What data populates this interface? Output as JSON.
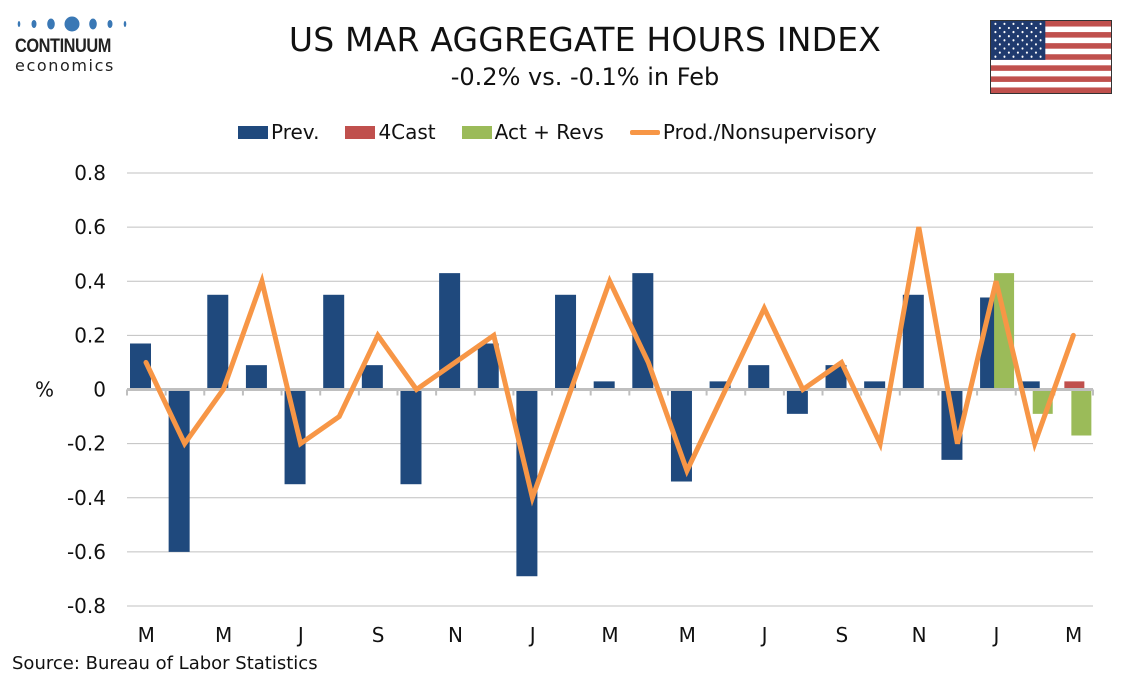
{
  "logo": {
    "name": "CONTINUUM",
    "sub": "economics",
    "dot_color": "#3a78b5"
  },
  "header": {
    "title": "US MAR AGGREGATE HOURS INDEX",
    "subtitle": "-0.2% vs. -0.1% in Feb",
    "flag": "us-flag"
  },
  "colors": {
    "prev": "#1f497d",
    "forecast": "#c0504d",
    "actual": "#9bbb59",
    "line": "#f79646",
    "grid": "#c0c0c0",
    "axis": "#bfbfbf"
  },
  "source": "Source: Bureau of Labor Statistics",
  "chart_data": {
    "type": "bar",
    "title": "US MAR AGGREGATE HOURS INDEX",
    "subtitle": "-0.2% vs. -0.1% in Feb",
    "xlabel": "",
    "ylabel": "%",
    "ylim": [
      -0.8,
      0.8
    ],
    "yticks": [
      0.8,
      0.6,
      0.4,
      0.2,
      0,
      -0.2,
      -0.4,
      -0.6,
      -0.8
    ],
    "ytick_labels": [
      "0.8",
      "0.6",
      "0.4",
      "0.2",
      "0",
      "-0.2",
      "-0.4",
      "-0.6",
      "-0.8"
    ],
    "grid": true,
    "legend_position": "top",
    "categories": [
      "Mar",
      "Apr",
      "May",
      "Jun",
      "Jul",
      "Aug",
      "Sep",
      "Oct",
      "Nov",
      "Dec",
      "Jan",
      "Feb",
      "Mar",
      "Apr",
      "May",
      "Jun",
      "Jul",
      "Aug",
      "Sep",
      "Oct",
      "Nov",
      "Dec",
      "Jan",
      "Feb",
      "Mar"
    ],
    "xtick_labels": [
      "M",
      "M",
      "J",
      "S",
      "N",
      "J",
      "M",
      "M",
      "J",
      "S",
      "N",
      "J",
      "M"
    ],
    "xtick_every": 2,
    "series": [
      {
        "name": "Prev.",
        "type": "bar",
        "color_key": "prev",
        "values": [
          0.17,
          -0.6,
          0.35,
          0.09,
          -0.35,
          0.35,
          0.09,
          -0.35,
          0.43,
          0.17,
          -0.69,
          0.35,
          0.03,
          0.43,
          -0.34,
          0.03,
          0.09,
          -0.09,
          0.09,
          0.03,
          0.35,
          -0.26,
          0.34,
          0.03,
          null
        ]
      },
      {
        "name": "4Cast",
        "type": "bar",
        "color_key": "forecast",
        "values": [
          null,
          null,
          null,
          null,
          null,
          null,
          null,
          null,
          null,
          null,
          null,
          null,
          null,
          null,
          null,
          null,
          null,
          null,
          null,
          null,
          null,
          null,
          null,
          null,
          0.03
        ]
      },
      {
        "name": "Act + Revs",
        "type": "bar",
        "color_key": "actual",
        "values": [
          null,
          null,
          null,
          null,
          null,
          null,
          null,
          null,
          null,
          null,
          null,
          null,
          null,
          null,
          null,
          null,
          null,
          null,
          null,
          null,
          null,
          null,
          0.43,
          -0.09,
          -0.17
        ]
      },
      {
        "name": "Prod./Nonsupervisory",
        "type": "line",
        "color_key": "line",
        "values": [
          0.1,
          -0.2,
          0,
          0.4,
          -0.2,
          -0.1,
          0.2,
          0,
          0.1,
          0.2,
          -0.4,
          0,
          0.4,
          0.1,
          -0.3,
          0,
          0.3,
          0,
          0.1,
          -0.2,
          0.6,
          -0.2,
          0.4,
          -0.2,
          0.2
        ]
      }
    ]
  }
}
